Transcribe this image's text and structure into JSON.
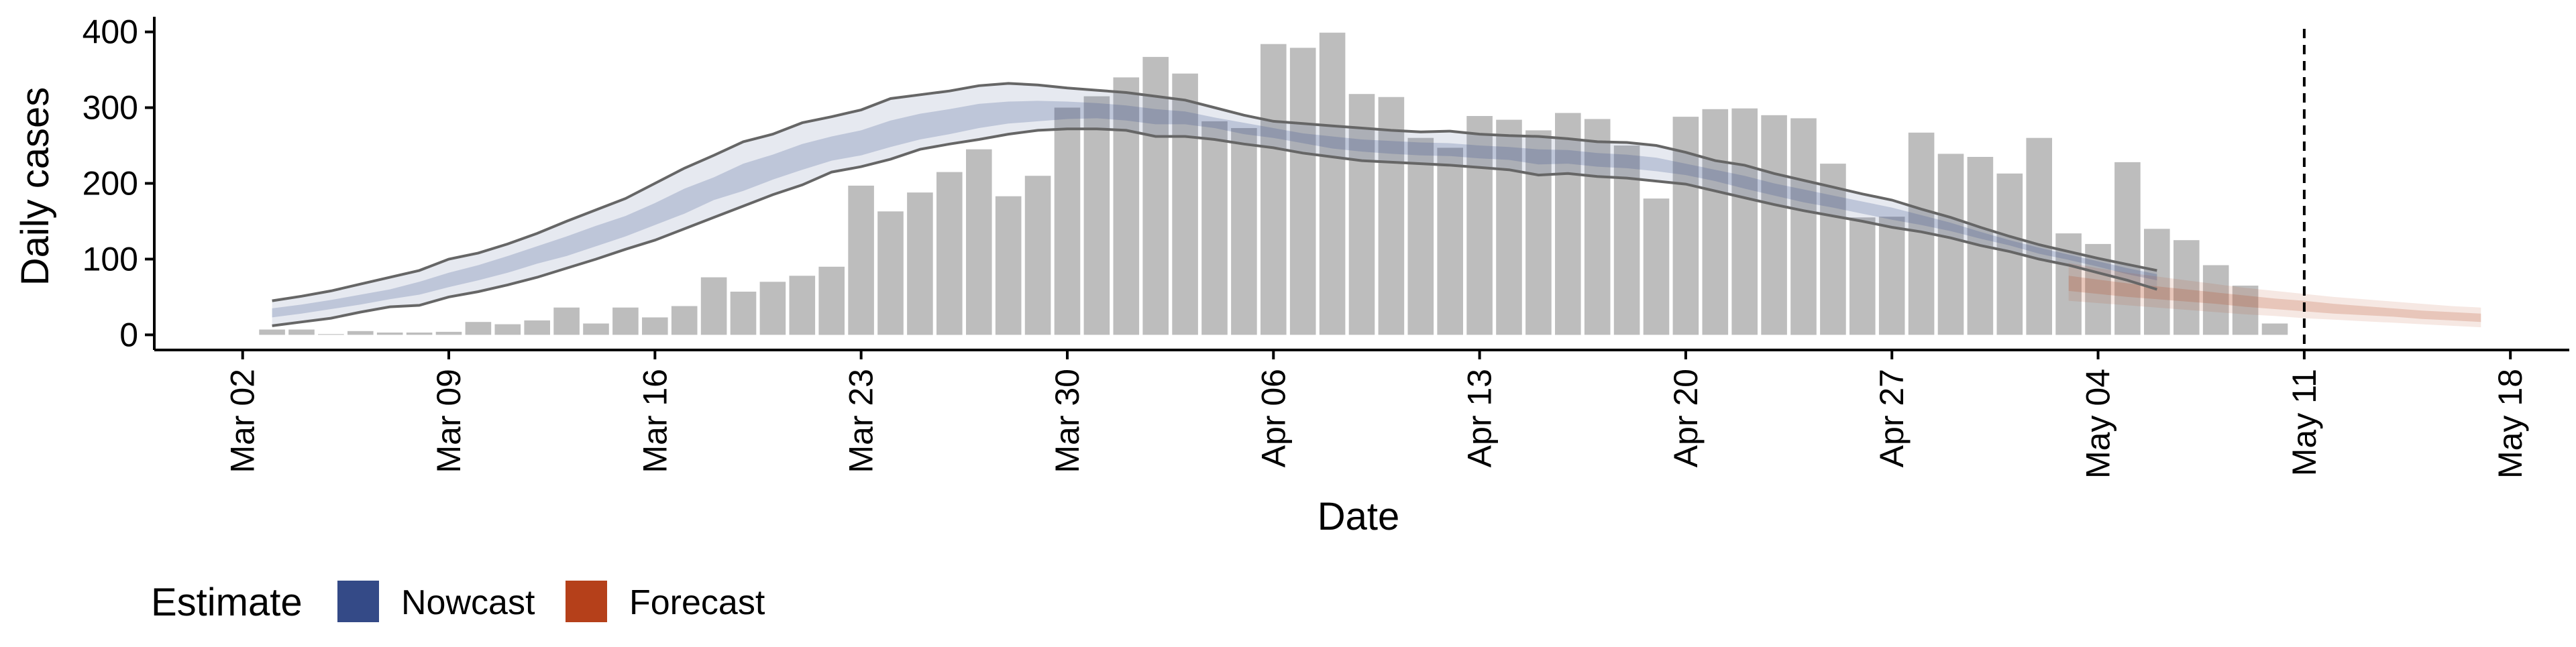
{
  "chart_data": {
    "type": "bar",
    "title": "",
    "xlabel": "Date",
    "ylabel": "Daily cases",
    "x_axis": {
      "type": "date",
      "range": [
        "2020-02-28",
        "2020-05-20"
      ],
      "tick_dates": [
        "2020-03-02",
        "2020-03-09",
        "2020-03-16",
        "2020-03-23",
        "2020-03-30",
        "2020-04-06",
        "2020-04-13",
        "2020-04-20",
        "2020-04-27",
        "2020-05-04",
        "2020-05-11",
        "2020-05-18"
      ],
      "tick_labels": [
        "Mar 02",
        "Mar 09",
        "Mar 16",
        "Mar 23",
        "Mar 30",
        "Apr 06",
        "Apr 13",
        "Apr 20",
        "Apr 27",
        "May 04",
        "May 11",
        "May 18"
      ]
    },
    "y_axis": {
      "range": [
        -20,
        420
      ],
      "ticks": [
        0,
        100,
        200,
        300,
        400
      ],
      "tick_labels": [
        "0",
        "100",
        "200",
        "300",
        "400"
      ]
    },
    "grid": false,
    "legend": {
      "position": "bottom-left",
      "title": "Estimate",
      "entries": [
        {
          "label": "Nowcast",
          "color": "#344a87"
        },
        {
          "label": "Forecast",
          "color": "#b5401a"
        }
      ]
    },
    "reference_line": {
      "date": "2020-05-11",
      "style": "dashed"
    },
    "bars": {
      "name": "Daily cases",
      "color": "#bdbdbd",
      "start_date": "2020-03-03",
      "values": [
        7,
        7,
        1,
        5,
        3,
        3,
        4,
        17,
        14,
        19,
        36,
        15,
        36,
        23,
        38,
        76,
        57,
        70,
        78,
        90,
        197,
        163,
        188,
        215,
        245,
        183,
        210,
        300,
        315,
        340,
        367,
        345,
        282,
        273,
        384,
        379,
        399,
        318,
        314,
        260,
        247,
        289,
        284,
        270,
        293,
        285,
        250,
        180,
        288,
        298,
        299,
        290,
        286,
        226,
        155,
        156,
        267,
        239,
        235,
        213,
        260,
        134,
        120,
        228,
        140,
        125,
        92,
        65,
        15
      ]
    },
    "nowcast": {
      "name": "Nowcast",
      "color": "#344a87",
      "start_date": "2020-03-03",
      "dates_step_days": 1,
      "lower_90": [
        12,
        17,
        22,
        30,
        37,
        39,
        50,
        57,
        66,
        76,
        88,
        100,
        113,
        125,
        140,
        155,
        170,
        185,
        198,
        215,
        222,
        232,
        245,
        252,
        258,
        265,
        270,
        272,
        272,
        270,
        262,
        262,
        258,
        252,
        247,
        240,
        235,
        230,
        228,
        226,
        224,
        221,
        218,
        211,
        213,
        209,
        207,
        203,
        199,
        190,
        181,
        172,
        164,
        157,
        150,
        142,
        136,
        128,
        118,
        110,
        100,
        92,
        82,
        72,
        60
      ],
      "upper_90": [
        45,
        51,
        58,
        67,
        76,
        85,
        100,
        108,
        120,
        134,
        150,
        165,
        180,
        200,
        220,
        237,
        255,
        265,
        280,
        288,
        297,
        312,
        317,
        322,
        329,
        332,
        330,
        326,
        323,
        320,
        315,
        310,
        300,
        290,
        282,
        279,
        276,
        273,
        270,
        268,
        269,
        265,
        263,
        262,
        259,
        255,
        254,
        250,
        241,
        230,
        224,
        213,
        204,
        195,
        186,
        178,
        166,
        155,
        142,
        130,
        119,
        110,
        101,
        93,
        85
      ],
      "lower_50": [
        23,
        28,
        34,
        40,
        47,
        53,
        63,
        72,
        82,
        94,
        104,
        117,
        130,
        145,
        160,
        178,
        190,
        205,
        218,
        230,
        237,
        248,
        258,
        265,
        273,
        279,
        282,
        285,
        286,
        283,
        278,
        278,
        273,
        265,
        260,
        253,
        246,
        242,
        239,
        237,
        236,
        233,
        231,
        225,
        226,
        222,
        220,
        216,
        211,
        203,
        193,
        184,
        175,
        168,
        160,
        152,
        145,
        137,
        127,
        118,
        107,
        99,
        90,
        80,
        72
      ],
      "upper_50": [
        35,
        40,
        46,
        53,
        60,
        70,
        82,
        92,
        104,
        117,
        130,
        144,
        157,
        174,
        193,
        208,
        226,
        238,
        252,
        262,
        270,
        283,
        292,
        298,
        305,
        308,
        309,
        308,
        306,
        303,
        298,
        295,
        287,
        280,
        273,
        266,
        262,
        258,
        256,
        254,
        253,
        250,
        248,
        245,
        244,
        240,
        238,
        234,
        226,
        218,
        210,
        200,
        192,
        184,
        176,
        168,
        158,
        148,
        136,
        125,
        115,
        106,
        97,
        88,
        80
      ],
      "line_lower": [
        12,
        17,
        22,
        30,
        37,
        39,
        50,
        57,
        66,
        76,
        88,
        100,
        113,
        125,
        140,
        155,
        170,
        185,
        198,
        215,
        222,
        232,
        245,
        252,
        258,
        265,
        270,
        272,
        272,
        270,
        262,
        262,
        258,
        252,
        247,
        240,
        235,
        230,
        228,
        226,
        224,
        221,
        218,
        211,
        213,
        209,
        207,
        203,
        199,
        190,
        181,
        172,
        164,
        157,
        150,
        142,
        136,
        128,
        118,
        110,
        100,
        92,
        82,
        72,
        60
      ],
      "line_upper": [
        45,
        51,
        58,
        67,
        76,
        85,
        100,
        108,
        120,
        134,
        150,
        165,
        180,
        200,
        220,
        237,
        255,
        265,
        280,
        288,
        297,
        312,
        317,
        322,
        329,
        332,
        330,
        326,
        323,
        320,
        315,
        310,
        300,
        290,
        282,
        279,
        276,
        273,
        270,
        268,
        269,
        265,
        263,
        262,
        259,
        255,
        254,
        250,
        241,
        230,
        224,
        213,
        204,
        195,
        186,
        178,
        166,
        155,
        142,
        130,
        119,
        110,
        101,
        93,
        85
      ]
    },
    "forecast": {
      "name": "Forecast",
      "color": "#b5401a",
      "start_date": "2020-05-03",
      "lower_90": [
        45,
        42,
        39,
        36,
        33,
        30,
        27,
        25,
        22,
        20,
        18,
        16,
        14,
        12,
        10
      ],
      "upper_90": [
        95,
        88,
        82,
        77,
        72,
        67,
        62,
        58,
        54,
        50,
        47,
        44,
        41,
        38,
        36
      ],
      "lower_50": [
        58,
        54,
        50,
        47,
        44,
        41,
        37,
        34,
        31,
        28,
        26,
        24,
        21,
        19,
        17
      ],
      "upper_50": [
        78,
        73,
        68,
        64,
        60,
        56,
        52,
        48,
        45,
        41,
        38,
        35,
        32,
        30,
        28
      ]
    }
  }
}
